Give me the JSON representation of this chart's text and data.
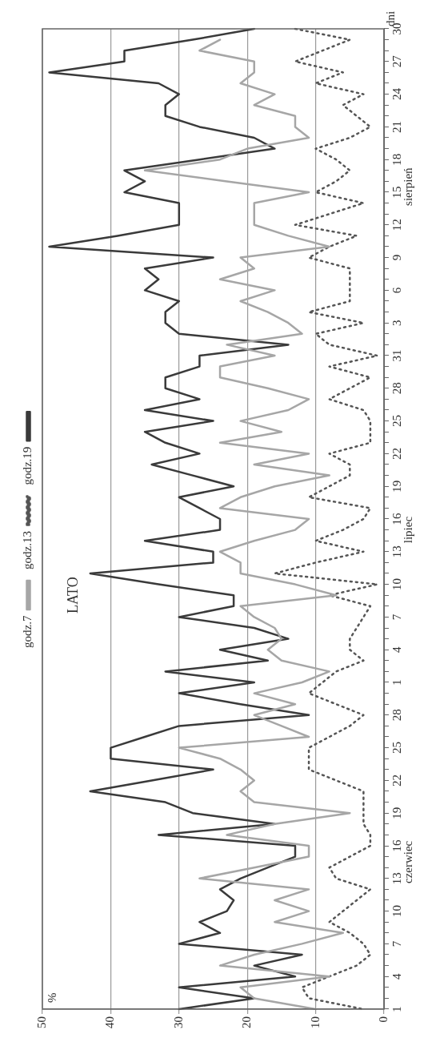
{
  "chart_data": {
    "type": "line",
    "orientation": "horizontal",
    "title": "LATO",
    "ylabel": "dni",
    "categories": [
      "30",
      null,
      null,
      "27",
      null,
      null,
      "24",
      null,
      null,
      "21",
      null,
      null,
      "18",
      null,
      null,
      "15",
      null,
      null,
      "12",
      null,
      null,
      "9",
      null,
      null,
      "6",
      null,
      null,
      "3",
      null,
      null,
      "31",
      null,
      null,
      "28",
      null,
      null,
      "25",
      null,
      null,
      "22",
      null,
      null,
      "19",
      null,
      null,
      "16",
      null,
      null,
      "13",
      null,
      null,
      "10",
      null,
      null,
      "7",
      null,
      null,
      "4",
      null,
      null,
      "1",
      null,
      null,
      "28",
      null,
      null,
      "25",
      null,
      null,
      "22",
      null,
      null,
      "19",
      null,
      null,
      "16",
      null,
      null,
      "13",
      null,
      null,
      "10",
      null,
      null,
      "7",
      null,
      null,
      "4",
      null,
      null,
      "1"
    ],
    "series": [
      {
        "name": "godz.7",
        "color": "#a6a6a6",
        "line_style": "solid",
        "values": [
          null,
          24,
          27,
          19,
          19,
          21,
          16,
          19,
          13,
          13,
          11,
          20,
          24,
          35,
          23,
          11,
          19,
          19,
          19,
          14,
          8,
          21,
          19,
          24,
          16,
          21,
          17,
          14,
          12,
          23,
          16,
          24,
          24,
          17,
          11,
          14,
          21,
          15,
          24,
          11,
          19,
          8,
          16,
          21,
          24,
          11,
          13,
          19,
          24,
          21,
          21,
          13,
          7,
          21,
          19,
          16,
          15,
          17,
          15,
          8,
          12,
          19,
          13,
          19,
          15,
          11,
          30,
          24,
          21,
          19,
          21,
          19,
          5,
          16,
          23,
          11,
          11,
          19,
          27,
          11,
          16,
          11,
          16,
          6,
          12,
          19,
          24,
          8,
          21,
          19,
          10
        ]
      },
      {
        "name": "godz.13",
        "color": "#555555",
        "line_style": "dotted",
        "values": [
          13,
          5,
          9,
          13,
          6,
          10,
          3,
          6,
          4,
          2,
          5,
          10,
          7,
          5,
          7,
          10,
          3,
          8,
          13,
          4,
          8,
          11,
          5,
          5,
          5,
          5,
          11,
          3,
          10,
          8,
          1,
          8,
          2,
          5,
          8,
          3,
          2,
          2,
          2,
          8,
          5,
          5,
          8,
          11,
          2,
          3,
          6,
          10,
          3,
          10,
          16,
          1,
          8,
          2,
          3,
          4,
          5,
          5,
          3,
          7,
          9,
          11,
          7,
          3,
          5,
          8,
          11,
          11,
          11,
          7,
          3,
          3,
          3,
          3,
          2,
          2,
          5,
          8,
          7,
          2,
          4,
          6,
          8,
          5,
          3,
          2,
          4,
          8,
          12,
          11,
          3
        ]
      },
      {
        "name": "godz.19",
        "color": "#3a3a3a",
        "line_style": "solid",
        "values": [
          19,
          28,
          38,
          38,
          49,
          33,
          30,
          32,
          32,
          27,
          19,
          16,
          27,
          38,
          35,
          38,
          30,
          30,
          30,
          39,
          49,
          25,
          35,
          33,
          35,
          30,
          32,
          32,
          30,
          14,
          27,
          27,
          32,
          32,
          27,
          35,
          25,
          35,
          32,
          27,
          34,
          28,
          22,
          30,
          27,
          24,
          24,
          35,
          25,
          25,
          43,
          33,
          22,
          22,
          30,
          19,
          14,
          24,
          17,
          32,
          19,
          30,
          21,
          11,
          30,
          35,
          40,
          40,
          25,
          34,
          43,
          32,
          28,
          16,
          33,
          13,
          13,
          17,
          21,
          24,
          22,
          23,
          27,
          24,
          30,
          12,
          19,
          13,
          30,
          19,
          30
        ]
      }
    ],
    "annotations": [
      "sierpień",
      "lipiec",
      "czerwiec",
      "%"
    ],
    "xlim": [
      50,
      0
    ],
    "xticks": [
      0,
      10,
      20,
      30,
      40,
      50
    ],
    "grid": "x",
    "legend": "left",
    "marker": "none"
  }
}
